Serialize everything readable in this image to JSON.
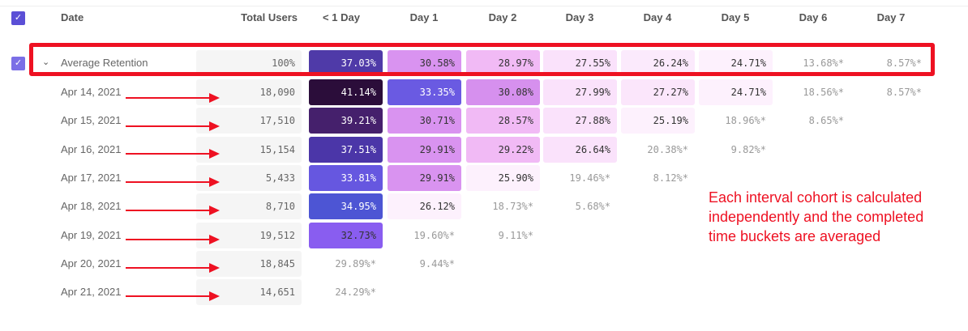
{
  "header": {
    "date": "Date",
    "total_users": "Total Users",
    "columns": [
      "< 1 Day",
      "Day 1",
      "Day 2",
      "Day 3",
      "Day 4",
      "Day 5",
      "Day 6",
      "Day 7"
    ]
  },
  "average": {
    "label": "Average Retention",
    "total": "100%",
    "cells": [
      {
        "v": "37.03%",
        "bg": "#4f3aa8"
      },
      {
        "v": "30.58%",
        "bg": "#d993f0"
      },
      {
        "v": "28.97%",
        "bg": "#f1baf5"
      },
      {
        "v": "27.55%",
        "bg": "#fae2fb"
      },
      {
        "v": "26.24%",
        "bg": "#fbeafc"
      },
      {
        "v": "24.71%",
        "bg": "#fdf1fd"
      },
      {
        "v": "13.68%*"
      },
      {
        "v": "8.57%*"
      }
    ]
  },
  "rows": [
    {
      "date": "Apr 14, 2021",
      "total": "18,090",
      "cells": [
        {
          "v": "41.14%",
          "bg": "#2b0d3a"
        },
        {
          "v": "33.35%",
          "bg": "#6a5ae2"
        },
        {
          "v": "30.08%",
          "bg": "#d690ee"
        },
        {
          "v": "27.99%",
          "bg": "#fae2fb"
        },
        {
          "v": "27.27%",
          "bg": "#fbe6fb"
        },
        {
          "v": "24.71%",
          "bg": "#fdf1fd"
        },
        {
          "v": "18.56%*"
        },
        {
          "v": "8.57%*"
        }
      ]
    },
    {
      "date": "Apr 15, 2021",
      "total": "17,510",
      "cells": [
        {
          "v": "39.21%",
          "bg": "#45206c"
        },
        {
          "v": "30.71%",
          "bg": "#d993f0"
        },
        {
          "v": "28.57%",
          "bg": "#f1baf5"
        },
        {
          "v": "27.88%",
          "bg": "#fae2fb"
        },
        {
          "v": "25.19%",
          "bg": "#fdf1fd"
        },
        {
          "v": "18.96%*"
        },
        {
          "v": "8.65%*"
        }
      ]
    },
    {
      "date": "Apr 16, 2021",
      "total": "15,154",
      "cells": [
        {
          "v": "37.51%",
          "bg": "#4b36a8"
        },
        {
          "v": "29.91%",
          "bg": "#d993f0"
        },
        {
          "v": "29.22%",
          "bg": "#f1baf5"
        },
        {
          "v": "26.64%",
          "bg": "#fae2fb"
        },
        {
          "v": "20.38%*"
        },
        {
          "v": "9.82%*"
        }
      ]
    },
    {
      "date": "Apr 17, 2021",
      "total": "5,433",
      "cells": [
        {
          "v": "33.81%",
          "bg": "#6657e0"
        },
        {
          "v": "29.91%",
          "bg": "#d993f0"
        },
        {
          "v": "25.90%",
          "bg": "#fdf1fd"
        },
        {
          "v": "19.46%*"
        },
        {
          "v": "8.12%*"
        }
      ]
    },
    {
      "date": "Apr 18, 2021",
      "total": "8,710",
      "cells": [
        {
          "v": "34.95%",
          "bg": "#4d55d4"
        },
        {
          "v": "26.12%",
          "bg": "#fdf1fd"
        },
        {
          "v": "18.73%*"
        },
        {
          "v": "5.68%*"
        }
      ]
    },
    {
      "date": "Apr 19, 2021",
      "total": "19,512",
      "cells": [
        {
          "v": "32.73%",
          "bg": "#895df0"
        },
        {
          "v": "19.60%*"
        },
        {
          "v": "9.11%*"
        }
      ]
    },
    {
      "date": "Apr 20, 2021",
      "total": "18,845",
      "cells": [
        {
          "v": "29.89%*"
        },
        {
          "v": "9.44%*"
        }
      ]
    },
    {
      "date": "Apr 21, 2021",
      "total": "14,651",
      "cells": [
        {
          "v": "24.29%*"
        }
      ]
    }
  ],
  "annotation": "Each interval cohort is calculated independently and the completed time buckets are averaged",
  "colors": {
    "accent": "#5b4fd6",
    "annotation": "#ee1122"
  }
}
